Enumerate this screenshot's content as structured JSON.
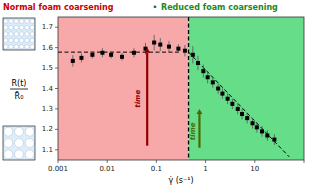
{
  "chart_data": {
    "type": "scatter",
    "title_left": "Normal foam coarsening",
    "title_left_color": "#cc0000",
    "title_separator": "•",
    "title_separator_color": "#008000",
    "title_right": "Reduced foam coarsening",
    "title_right_color": "#228822",
    "xlabel": "γ̇ (s⁻¹)",
    "ylabel_numerator": "R(t)",
    "ylabel_denominator": "R̄₀",
    "log": "x",
    "grid": false,
    "xlim": [
      0.001,
      100
    ],
    "ylim": [
      1.05,
      1.75
    ],
    "xticks": [
      0.001,
      0.01,
      0.1,
      1,
      10,
      {
        "value": 100,
        "label": null
      }
    ],
    "yticks": [
      1.1,
      1.2,
      1.3,
      1.4,
      1.5,
      1.6,
      1.7
    ],
    "regions": [
      {
        "x": [
          0.001,
          0.45
        ],
        "color": "#f7a9a9"
      },
      {
        "x": [
          0.45,
          100
        ],
        "color": "#66dd88"
      }
    ],
    "divider": {
      "x": 0.45,
      "color": "#000000",
      "line_style": "dashed"
    },
    "series": [
      {
        "type": "scatter",
        "marker": "square",
        "color": "#000000",
        "error_color": "#555555",
        "x": [
          0.002,
          0.003,
          0.005,
          0.008,
          0.012,
          0.02,
          0.035,
          0.06,
          0.09,
          0.12,
          0.18,
          0.28,
          0.38
        ],
        "values": [
          1.535,
          1.55,
          1.565,
          1.575,
          1.565,
          1.555,
          1.575,
          1.595,
          1.625,
          1.615,
          1.605,
          1.595,
          1.585
        ],
        "errors": [
          0.028,
          0.022,
          0.018,
          0.022,
          0.018,
          0.018,
          0.022,
          0.028,
          0.038,
          0.032,
          0.028,
          0.022,
          0.028
        ]
      },
      {
        "type": "scatter",
        "marker": "square",
        "color": "#000000",
        "error_color": "#555555",
        "x": [
          0.55,
          0.7,
          0.9,
          1.1,
          1.4,
          1.8,
          2.2,
          2.8,
          3.5,
          4.5,
          5.5,
          7,
          9,
          11,
          14,
          18,
          25
        ],
        "values": [
          1.565,
          1.525,
          1.485,
          1.455,
          1.43,
          1.4,
          1.375,
          1.35,
          1.325,
          1.3,
          1.275,
          1.255,
          1.23,
          1.21,
          1.19,
          1.17,
          1.15
        ],
        "errors": [
          0.042,
          0.035,
          0.032,
          0.03,
          0.026,
          0.026,
          0.026,
          0.026,
          0.026,
          0.026,
          0.026,
          0.026,
          0.026,
          0.026,
          0.026,
          0.026,
          0.026
        ]
      }
    ],
    "lines": [
      {
        "type": "line",
        "line_style": "dashed",
        "color": "#000000",
        "x": [
          0.001,
          0.281838
        ],
        "values": [
          1.578,
          1.578
        ]
      },
      {
        "type": "line",
        "line_style": "dashed",
        "color": "#000000",
        "x": [
          0.446684,
          50.118723
        ],
        "values": [
          1.578804,
          1.065475
        ]
      }
    ],
    "annotations": [
      {
        "text": "time",
        "x": 0.043,
        "y": 1.35,
        "color": "#8b0000",
        "arrow_x": [
          0.065,
          0.065
        ],
        "arrow_y": [
          1.12,
          1.6
        ]
      },
      {
        "text": "time",
        "x": 0.55,
        "y": 1.19,
        "color": "#4a6a00",
        "arrow_x": [
          0.75,
          0.75
        ],
        "arrow_y": [
          1.11,
          1.3
        ]
      }
    ],
    "insets": [
      {
        "color": "#d8eef8",
        "bubble_color": "#aabbdd"
      },
      {
        "color": "#ddeef8",
        "bubble_color": "#aabbdd"
      }
    ]
  }
}
